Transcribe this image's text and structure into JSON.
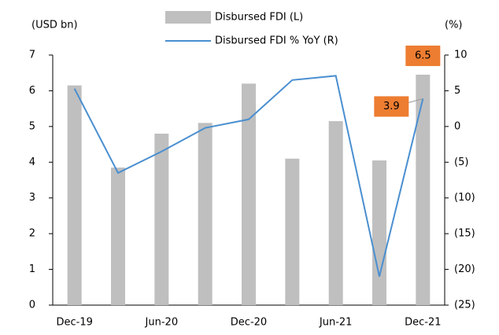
{
  "chart_data": {
    "type": "bar",
    "categories": [
      "Dec-19",
      null,
      "Jun-20",
      null,
      "Dec-20",
      null,
      "Jun-21",
      null,
      "Dec-21"
    ],
    "y_label": "(USD bn)",
    "y2_label": "(%)",
    "series": [
      {
        "name": "Disbursed FDI (L)",
        "type": "bar",
        "color": "#bfbfbf",
        "values": [
          6.15,
          3.85,
          4.8,
          5.1,
          6.2,
          4.1,
          5.15,
          4.05,
          6.45
        ],
        "value_labels": [
          null,
          null,
          null,
          null,
          null,
          null,
          null,
          null,
          "6.5"
        ]
      },
      {
        "name": "Disbursed FDI % YoY (R)",
        "type": "line",
        "axis": "y2",
        "color": "#4a8fd0",
        "values": [
          5.3,
          -6.5,
          -3.5,
          -0.2,
          1.0,
          6.5,
          7.1,
          -21.0,
          3.9
        ],
        "value_labels": [
          null,
          null,
          null,
          null,
          null,
          null,
          null,
          null,
          "3.9"
        ]
      }
    ],
    "ylim": [
      0,
      7
    ],
    "yticks": [
      0,
      1,
      2,
      3,
      4,
      5,
      6,
      7
    ],
    "y2lim": [
      -25,
      10
    ],
    "y2ticks": [
      {
        "value": -25,
        "label": "(25)"
      },
      {
        "value": -20,
        "label": "(20)"
      },
      {
        "value": -15,
        "label": "(15)"
      },
      {
        "value": -10,
        "label": "(10)"
      },
      {
        "value": -5,
        "label": "(5)"
      },
      0,
      5,
      10
    ],
    "label_color": "#ed7d31"
  }
}
